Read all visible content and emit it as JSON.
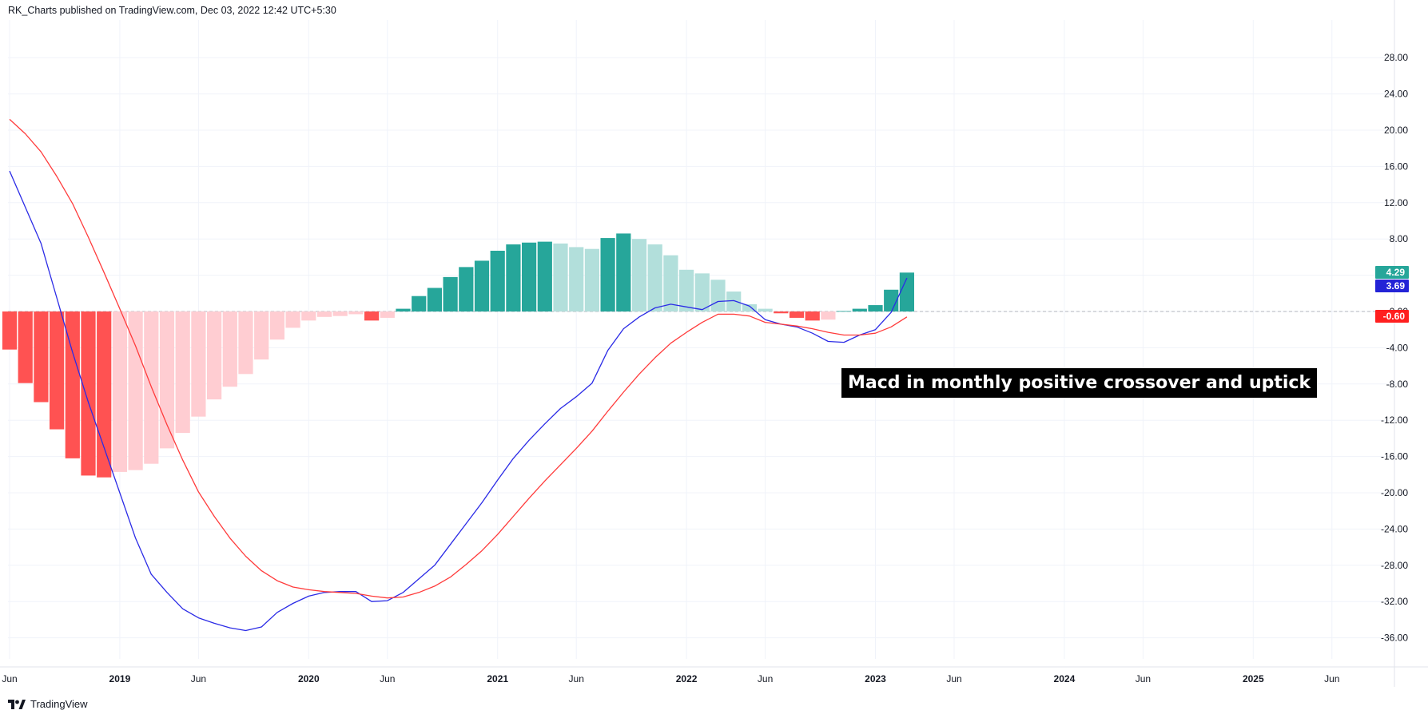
{
  "header": {
    "text": "RK_Charts published on TradingView.com, Dec 03, 2022 12:42 UTC+5:30"
  },
  "footer": {
    "brand": "TradingView",
    "logo_icon": "tradingview-logo-icon"
  },
  "annotation": {
    "text": "Macd in monthly positive crossover and uptick"
  },
  "chart_data": {
    "type": "bar",
    "subtype": "macd-histogram-with-lines",
    "y_ticks": [
      "28.00",
      "24.00",
      "20.00",
      "16.00",
      "12.00",
      "8.00",
      "4.00",
      "0.00",
      "-4.00",
      "-8.00",
      "-12.00",
      "-16.00",
      "-20.00",
      "-24.00",
      "-28.00",
      "-32.00",
      "-36.00"
    ],
    "ylim": [
      -39.5,
      33.5
    ],
    "x_labels": [
      {
        "label": "Jun",
        "year": false
      },
      {
        "label": "2019",
        "year": true
      },
      {
        "label": "Jun",
        "year": false
      },
      {
        "label": "2020",
        "year": true
      },
      {
        "label": "Jun",
        "year": false
      },
      {
        "label": "2021",
        "year": true
      },
      {
        "label": "Jun",
        "year": false
      },
      {
        "label": "2022",
        "year": true
      },
      {
        "label": "Jun",
        "year": false
      },
      {
        "label": "2023",
        "year": true
      },
      {
        "label": "Jun",
        "year": false
      },
      {
        "label": "2024",
        "year": true
      },
      {
        "label": "Jun",
        "year": false
      },
      {
        "label": "2025",
        "year": true
      },
      {
        "label": "Jun",
        "year": false
      }
    ],
    "x_label_months": [
      0,
      7,
      12,
      19,
      24,
      31,
      36,
      43,
      48,
      55,
      60,
      67,
      72,
      79,
      84
    ],
    "histogram": [
      -4.2,
      -7.9,
      -10.0,
      -13.0,
      -16.2,
      -18.1,
      -18.3,
      -17.7,
      -17.5,
      -16.8,
      -15.1,
      -13.4,
      -11.6,
      -9.7,
      -8.3,
      -6.9,
      -5.3,
      -3.1,
      -1.8,
      -1.0,
      -0.6,
      -0.5,
      -0.3,
      -1.0,
      -0.7,
      0.3,
      1.7,
      2.6,
      3.8,
      4.9,
      5.6,
      6.7,
      7.4,
      7.6,
      7.7,
      7.5,
      7.1,
      6.9,
      8.1,
      8.6,
      8.0,
      7.4,
      6.2,
      4.6,
      4.2,
      3.5,
      2.2,
      0.8,
      0.3,
      -0.2,
      -0.7,
      -1.0,
      -0.9,
      0.05,
      0.3,
      0.7,
      2.4,
      4.29
    ],
    "histogram_colors": {
      "pos_up": "#26a69a",
      "pos_down": "#b2dfdb",
      "neg_down": "#ff5252",
      "neg_up": "#ffcdd2"
    },
    "series": [
      {
        "name": "MACD",
        "color": "#2b2be6",
        "values": [
          15.5,
          11.5,
          7.5,
          1.5,
          -4.5,
          -10.0,
          -15.0,
          -20.0,
          -25.0,
          -29.0,
          -31.0,
          -32.8,
          -33.8,
          -34.4,
          -34.9,
          -35.2,
          -34.8,
          -33.2,
          -32.2,
          -31.4,
          -31.0,
          -30.9,
          -30.9,
          -32.0,
          -31.9,
          -31.0,
          -29.5,
          -28.0,
          -25.7,
          -23.4,
          -21.1,
          -18.6,
          -16.2,
          -14.2,
          -12.4,
          -10.7,
          -9.4,
          -7.9,
          -4.3,
          -1.9,
          -0.6,
          0.4,
          0.8,
          0.5,
          0.2,
          1.1,
          1.2,
          0.6,
          -0.9,
          -1.4,
          -1.7,
          -2.4,
          -3.3,
          -3.4,
          -2.6,
          -2.0,
          -0.1,
          3.69
        ]
      },
      {
        "name": "Signal",
        "color": "#ff3b3b",
        "values": [
          21.2,
          19.6,
          17.6,
          14.9,
          11.9,
          8.2,
          4.3,
          0.3,
          -3.8,
          -8.3,
          -12.5,
          -16.4,
          -19.9,
          -22.6,
          -25.0,
          -27.0,
          -28.6,
          -29.7,
          -30.4,
          -30.7,
          -30.9,
          -31.0,
          -31.1,
          -31.4,
          -31.6,
          -31.5,
          -31.0,
          -30.3,
          -29.3,
          -27.9,
          -26.4,
          -24.6,
          -22.6,
          -20.6,
          -18.7,
          -16.9,
          -15.1,
          -13.2,
          -11.0,
          -8.9,
          -6.9,
          -5.1,
          -3.5,
          -2.3,
          -1.2,
          -0.3,
          -0.3,
          -0.5,
          -1.2,
          -1.4,
          -1.6,
          -1.9,
          -2.3,
          -2.6,
          -2.6,
          -2.4,
          -1.7,
          -0.6
        ]
      }
    ],
    "last_values": [
      {
        "label": "4.29",
        "value": 4.29,
        "color": "#26a69a"
      },
      {
        "label": "3.69",
        "value": 3.69,
        "color": "#2323d6"
      },
      {
        "label": "-0.60",
        "value": -0.6,
        "color": "#ff1f1f"
      }
    ],
    "zero_line": true,
    "grid": true
  }
}
